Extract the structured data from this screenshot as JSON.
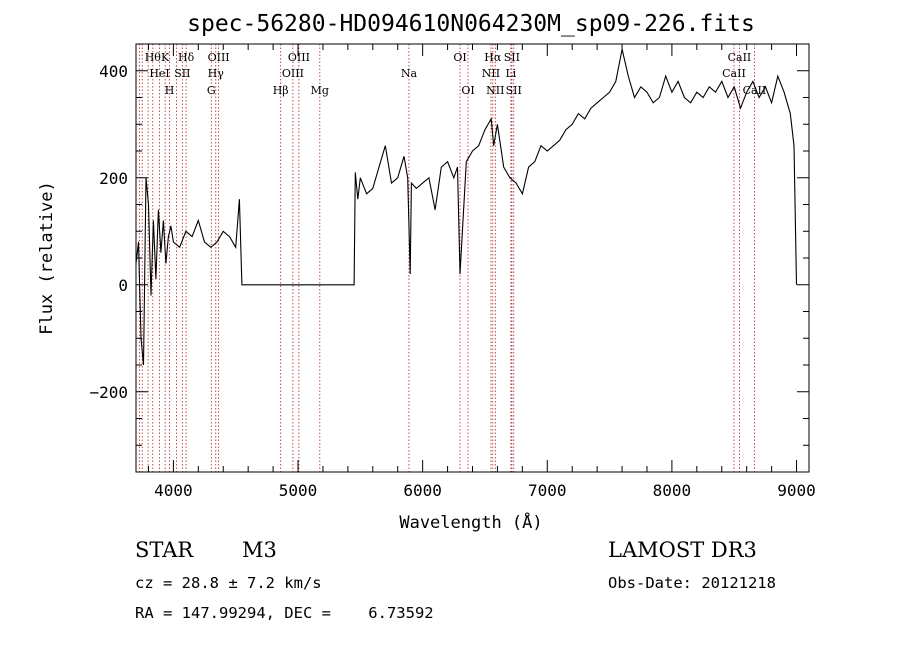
{
  "chart_data": {
    "type": "line",
    "title": "spec-56280-HD094610N064230M_sp09-226.fits",
    "xlabel": "Wavelength (Å)",
    "ylabel": "Flux (relative)",
    "xlim": [
      3700,
      9100
    ],
    "ylim": [
      -350,
      450
    ],
    "xticks": [
      4000,
      5000,
      6000,
      7000,
      8000,
      9000
    ],
    "yticks": [
      -200,
      0,
      200,
      400
    ],
    "grid": false,
    "series": [
      {
        "x": [
          3700,
          3720,
          3740,
          3760,
          3780,
          3800,
          3820,
          3840,
          3860,
          3880,
          3900,
          3920,
          3940,
          3960,
          3980,
          4000,
          4050,
          4100,
          4150,
          4200,
          4250,
          4300,
          4350,
          4400,
          4450,
          4500,
          4530,
          4550,
          4560,
          4600,
          5000,
          5400,
          5450,
          5460,
          5480,
          5500,
          5550,
          5600,
          5650,
          5700,
          5750,
          5800,
          5850,
          5880,
          5900,
          5910,
          5950,
          6000,
          6050,
          6100,
          6150,
          6200,
          6250,
          6280,
          6300,
          6350,
          6400,
          6450,
          6500,
          6550,
          6570,
          6600,
          6650,
          6700,
          6750,
          6800,
          6850,
          6900,
          6950,
          7000,
          7050,
          7100,
          7150,
          7200,
          7250,
          7300,
          7350,
          7400,
          7450,
          7500,
          7550,
          7600,
          7650,
          7700,
          7750,
          7800,
          7850,
          7900,
          7950,
          8000,
          8050,
          8100,
          8150,
          8200,
          8250,
          8300,
          8350,
          8400,
          8450,
          8500,
          8550,
          8600,
          8650,
          8700,
          8750,
          8800,
          8850,
          8900,
          8950,
          8980,
          9000
        ],
        "y": [
          40,
          80,
          -100,
          -150,
          200,
          150,
          -20,
          120,
          10,
          140,
          60,
          120,
          40,
          90,
          110,
          80,
          70,
          100,
          90,
          120,
          80,
          70,
          80,
          100,
          90,
          70,
          160,
          0,
          0,
          0,
          0,
          0,
          0,
          210,
          160,
          200,
          170,
          180,
          220,
          260,
          190,
          200,
          240,
          200,
          20,
          190,
          180,
          190,
          200,
          140,
          220,
          230,
          200,
          220,
          20,
          230,
          250,
          260,
          290,
          310,
          260,
          300,
          220,
          200,
          190,
          170,
          220,
          230,
          260,
          250,
          260,
          270,
          290,
          300,
          320,
          310,
          330,
          340,
          350,
          360,
          380,
          440,
          390,
          350,
          370,
          360,
          340,
          350,
          390,
          360,
          380,
          350,
          340,
          360,
          350,
          370,
          360,
          380,
          350,
          370,
          330,
          360,
          380,
          350,
          370,
          340,
          390,
          360,
          320,
          260,
          0
        ]
      }
    ],
    "spectral_lines": [
      {
        "x": 3727,
        "labels": [],
        "row": 1
      },
      {
        "x": 3750,
        "labels": [],
        "row": 0
      },
      {
        "x": 3797,
        "labels": [],
        "row": 0
      },
      {
        "x": 3835,
        "labels": [
          "Hθ"
        ],
        "row": 0
      },
      {
        "x": 3889,
        "labels": [
          "HeI"
        ],
        "row": 1
      },
      {
        "x": 3934,
        "labels": [
          "K"
        ],
        "row": 0
      },
      {
        "x": 3969,
        "labels": [
          "H"
        ],
        "row": 2
      },
      {
        "x": 4026,
        "labels": [],
        "row": 1
      },
      {
        "x": 4072,
        "labels": [
          "SII"
        ],
        "row": 1
      },
      {
        "x": 4102,
        "labels": [
          "Hδ"
        ],
        "row": 0
      },
      {
        "x": 4304,
        "labels": [
          "G"
        ],
        "row": 2
      },
      {
        "x": 4340,
        "labels": [
          "Hγ"
        ],
        "row": 1
      },
      {
        "x": 4363,
        "labels": [
          "OIII"
        ],
        "row": 0
      },
      {
        "x": 4861,
        "labels": [
          "Hβ"
        ],
        "row": 2
      },
      {
        "x": 4959,
        "labels": [
          "OIII"
        ],
        "row": 1
      },
      {
        "x": 5007,
        "labels": [
          "OIII"
        ],
        "row": 0
      },
      {
        "x": 5175,
        "labels": [
          "Mg"
        ],
        "row": 2
      },
      {
        "x": 5890,
        "labels": [
          "Na"
        ],
        "row": 1
      },
      {
        "x": 6300,
        "labels": [
          "OI"
        ],
        "row": 0
      },
      {
        "x": 6364,
        "labels": [
          "OI"
        ],
        "row": 2
      },
      {
        "x": 6548,
        "labels": [
          "NII"
        ],
        "row": 1
      },
      {
        "x": 6563,
        "labels": [
          "Hα"
        ],
        "row": 0
      },
      {
        "x": 6583,
        "labels": [
          "NII"
        ],
        "row": 2
      },
      {
        "x": 6708,
        "labels": [
          "Li"
        ],
        "row": 1
      },
      {
        "x": 6716,
        "labels": [
          "SII"
        ],
        "row": 0
      },
      {
        "x": 6731,
        "labels": [
          "SII"
        ],
        "row": 2
      },
      {
        "x": 8498,
        "labels": [
          "CaII"
        ],
        "row": 1
      },
      {
        "x": 8542,
        "labels": [
          "CaII"
        ],
        "row": 0
      },
      {
        "x": 8662,
        "labels": [
          "CaII"
        ],
        "row": 2
      }
    ],
    "colors": {
      "spectrum": "#000000",
      "lines": "#b22222",
      "axes": "#000000"
    }
  },
  "info": {
    "object_class": "STAR",
    "subclass": "M3",
    "survey": "LAMOST DR3",
    "cz": "cz = 28.8 ± 7.2 km/s",
    "obs_date": "Obs-Date: 20121218",
    "radec": "RA = 147.99294, DEC =    6.73592"
  }
}
